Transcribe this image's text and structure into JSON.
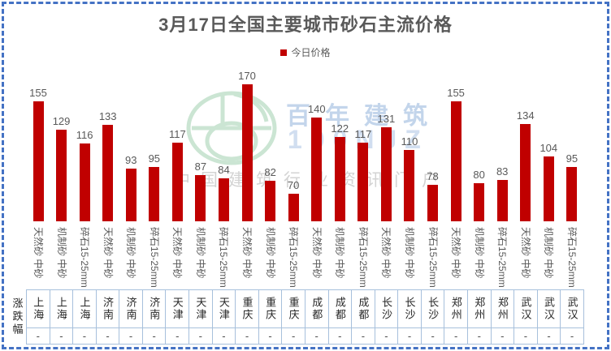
{
  "frame": {
    "background_color": "#FFFFFF",
    "selection_border_color": "#4472C4"
  },
  "chart_data": {
    "type": "bar",
    "title": "3月17日全国主要城市砂石主流价格",
    "legend": {
      "label": "今日价格",
      "marker_color": "#C00000",
      "position": "top-center"
    },
    "grid": false,
    "value_labels_shown": true,
    "bar_color": "#C00000",
    "text_color": "#595959",
    "series": [
      {
        "name": "今日价格",
        "values": [
          155,
          129,
          116,
          133,
          93,
          95,
          117,
          87,
          84,
          170,
          82,
          70,
          140,
          122,
          117,
          131,
          110,
          78,
          155,
          80,
          83,
          134,
          104,
          95
        ]
      }
    ],
    "x_product_labels": [
      "天然砂 中砂",
      "机制砂 中砂",
      "碎石15-25mm",
      "天然砂 中砂",
      "机制砂 中砂",
      "碎石15-25mm",
      "天然砂 中砂",
      "机制砂 中砂",
      "碎石15-25mm",
      "天然砂 中砂",
      "机制砂 中砂",
      "碎石15-25mm",
      "天然砂 中砂",
      "机制砂 中砂",
      "碎石15-25mm",
      "天然砂 中砂",
      "机制砂 中砂",
      "碎石15-25mm",
      "天然砂 中砂",
      "机制砂 中砂",
      "碎石15-25mm",
      "天然砂 中砂",
      "机制砂 中砂",
      "碎石15-25mm"
    ],
    "x_cities": [
      "上海",
      "上海",
      "上海",
      "济南",
      "济南",
      "济南",
      "天津",
      "天津",
      "天津",
      "重庆",
      "重庆",
      "重庆",
      "成都",
      "成都",
      "成都",
      "长沙",
      "长沙",
      "长沙",
      "郑州",
      "郑州",
      "郑州",
      "武汉",
      "武汉",
      "武汉"
    ]
  },
  "table": {
    "row_header": "涨跌幅",
    "border_color": "#A7C0DC",
    "cities": [
      "上海",
      "上海",
      "上海",
      "济南",
      "济南",
      "济南",
      "天津",
      "天津",
      "天津",
      "重庆",
      "重庆",
      "重庆",
      "成都",
      "成都",
      "成都",
      "长沙",
      "长沙",
      "长沙",
      "郑州",
      "郑州",
      "郑州",
      "武汉",
      "武汉",
      "武汉"
    ],
    "changes": [
      "-",
      "-",
      "-",
      "-",
      "-",
      "-",
      "-",
      "-",
      "-",
      "-",
      "-",
      "-",
      "-",
      "-",
      "-",
      "-",
      "-",
      "-",
      "-",
      "-",
      "-",
      "-",
      "-",
      "-"
    ]
  },
  "watermark": {
    "logo": "hundred-year-building-ring-logo",
    "logo_color": "#A9D4B6",
    "brand_cn": "百年建筑",
    "brand_code": "100NJZ",
    "brand_color": "#B9CEE8",
    "tagline": "中国建筑行业资讯门户",
    "tagline_color": "#CFCFCF"
  }
}
